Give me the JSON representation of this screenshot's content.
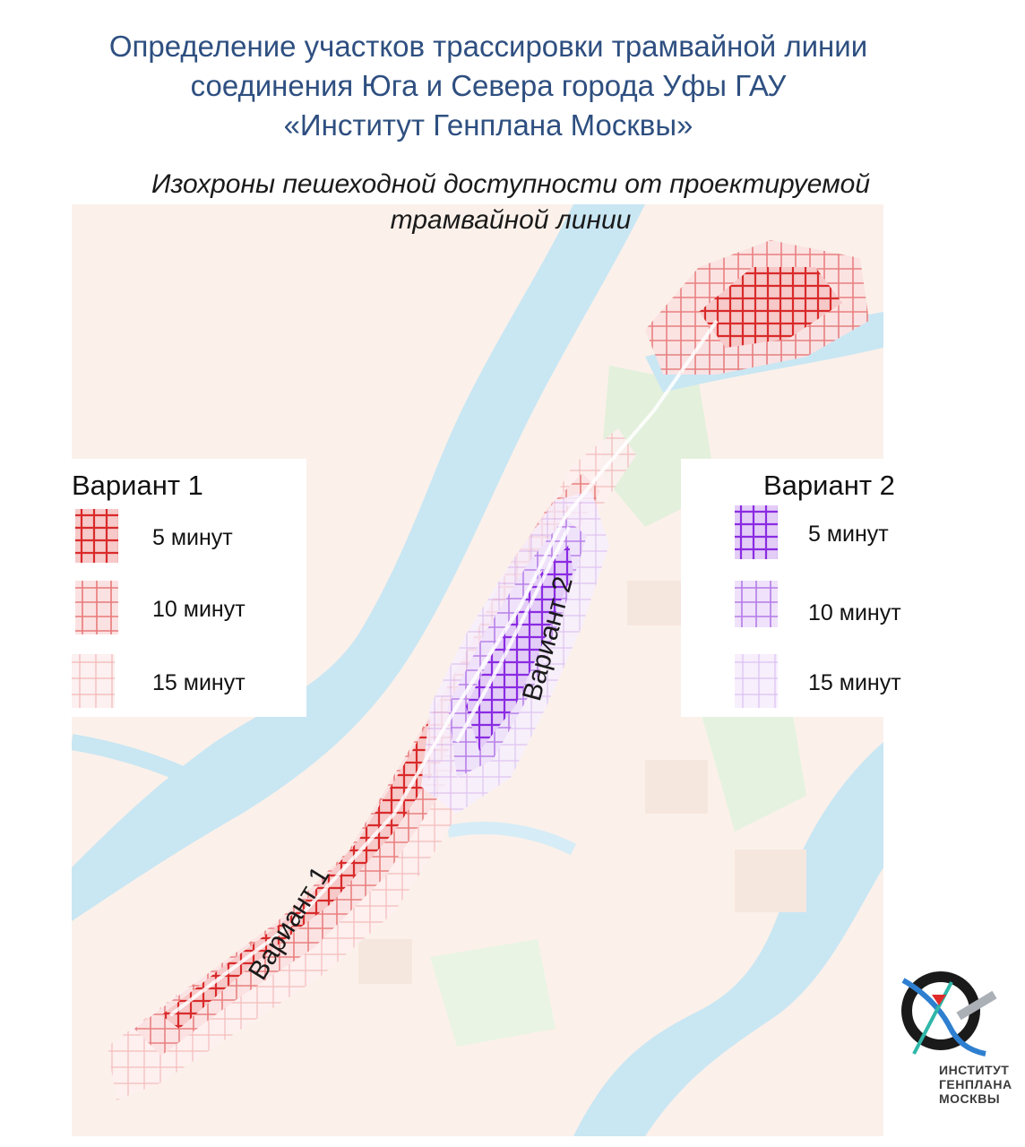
{
  "title": {
    "line1": "Определение участков трассировки трамвайной линии",
    "line2": "соединения Юга и Севера города Уфы ГАУ",
    "line3": "«Институт Генплана Москвы»"
  },
  "subtitle": {
    "line1": "Изохроны пешеходной доступности от проектируемой",
    "line2": "трамвайной линии"
  },
  "map_labels": {
    "variant1": "Вариант 1",
    "variant2": "Вариант 2"
  },
  "legend_variant1": {
    "title": "Вариант 1",
    "items": [
      {
        "label": "5 минут",
        "color": "#d92a2a"
      },
      {
        "label": "10 минут",
        "color": "#e87a7a"
      },
      {
        "label": "15 минут",
        "color": "#f3b6b6"
      }
    ]
  },
  "legend_variant2": {
    "title": "Вариант 2",
    "items": [
      {
        "label": "5 минут",
        "color": "#8a2be2"
      },
      {
        "label": "10 минут",
        "color": "#b57be8"
      },
      {
        "label": "15 минут",
        "color": "#dcc0f2"
      }
    ]
  },
  "logo": {
    "line1": "ИНСТИТУТ",
    "line2": "ГЕНПЛАНА",
    "line3": "МОСКВЫ"
  },
  "colors": {
    "title": "#2e4f80",
    "river": "#c9e6f3",
    "land": "#fbf1ea",
    "park": "#e3f0dc",
    "variant1": "#d92a2a",
    "variant2": "#8a2be2"
  }
}
